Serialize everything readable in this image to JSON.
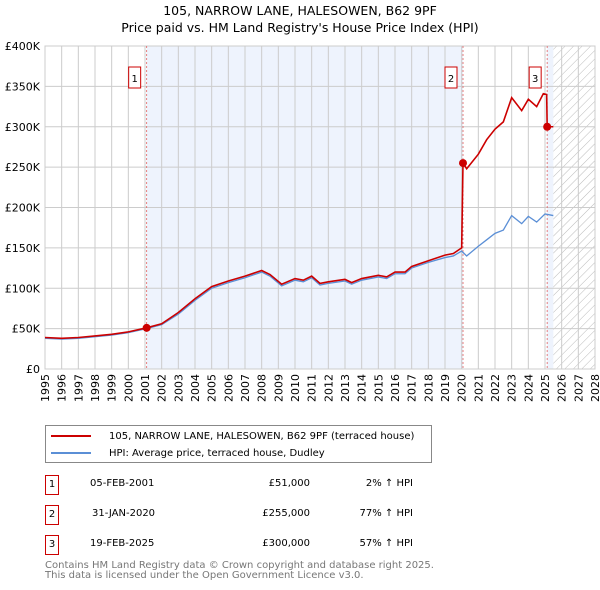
{
  "title": "105, NARROW LANE, HALESOWEN, B62 9PF",
  "subtitle": "Price paid vs. HM Land Registry's House Price Index (HPI)",
  "chart_data": {
    "type": "line",
    "ylabel": "",
    "xlabel": "",
    "xlim": [
      1995,
      2028
    ],
    "ylim": [
      0,
      400000
    ],
    "yticks": [
      {
        "v": 0,
        "label": "£0"
      },
      {
        "v": 50000,
        "label": "£50K"
      },
      {
        "v": 100000,
        "label": "£100K"
      },
      {
        "v": 150000,
        "label": "£150K"
      },
      {
        "v": 200000,
        "label": "£200K"
      },
      {
        "v": 250000,
        "label": "£250K"
      },
      {
        "v": 300000,
        "label": "£300K"
      },
      {
        "v": 350000,
        "label": "£350K"
      },
      {
        "v": 400000,
        "label": "£400K"
      }
    ],
    "xticks": [
      "1995",
      "1996",
      "1997",
      "1998",
      "1999",
      "2000",
      "2001",
      "2002",
      "2003",
      "2004",
      "2005",
      "2006",
      "2007",
      "2008",
      "2009",
      "2010",
      "2011",
      "2012",
      "2013",
      "2014",
      "2015",
      "2016",
      "2017",
      "2018",
      "2019",
      "2020",
      "2021",
      "2022",
      "2023",
      "2024",
      "2025",
      "2026",
      "2027",
      "2028"
    ],
    "shaded_ranges": [
      [
        2001.1,
        2020.08
      ],
      [
        2025.13,
        2025.5
      ]
    ],
    "forecast_hatch_from": 2025.5,
    "colors": {
      "property": "#cc0000",
      "hpi": "#5b8fd6",
      "shade": "#eef3fd",
      "marker": "#cc0000"
    },
    "series": [
      {
        "name": "105, NARROW LANE, HALESOWEN, B62 9PF (terraced house)",
        "points": [
          [
            1995,
            39000
          ],
          [
            1996,
            38000
          ],
          [
            1997,
            39000
          ],
          [
            1998,
            41000
          ],
          [
            1999,
            43000
          ],
          [
            2000,
            46000
          ],
          [
            2001.1,
            51000
          ],
          [
            2002,
            56000
          ],
          [
            2003,
            70000
          ],
          [
            2004,
            87000
          ],
          [
            2005,
            102000
          ],
          [
            2006,
            109000
          ],
          [
            2007,
            115000
          ],
          [
            2008,
            122000
          ],
          [
            2008.5,
            117000
          ],
          [
            2009.2,
            105000
          ],
          [
            2010,
            112000
          ],
          [
            2010.5,
            110000
          ],
          [
            2011,
            115000
          ],
          [
            2011.5,
            106000
          ],
          [
            2012,
            108000
          ],
          [
            2013,
            111000
          ],
          [
            2013.4,
            107000
          ],
          [
            2014,
            112000
          ],
          [
            2015,
            116000
          ],
          [
            2015.5,
            114000
          ],
          [
            2016,
            120000
          ],
          [
            2016.6,
            120000
          ],
          [
            2017,
            127000
          ],
          [
            2018,
            134000
          ],
          [
            2019,
            141000
          ],
          [
            2019.5,
            143000
          ],
          [
            2020.0,
            150000
          ],
          [
            2020.08,
            255000
          ],
          [
            2020.3,
            248000
          ],
          [
            2021,
            266000
          ],
          [
            2021.5,
            284000
          ],
          [
            2022,
            297000
          ],
          [
            2022.5,
            306000
          ],
          [
            2023,
            336000
          ],
          [
            2023.6,
            320000
          ],
          [
            2024,
            334000
          ],
          [
            2024.5,
            325000
          ],
          [
            2024.9,
            341000
          ],
          [
            2025.1,
            340000
          ],
          [
            2025.13,
            300000
          ],
          [
            2025.5,
            300000
          ]
        ]
      },
      {
        "name": "HPI: Average price, terraced house, Dudley",
        "points": [
          [
            1995,
            38000
          ],
          [
            1996,
            37000
          ],
          [
            1997,
            38000
          ],
          [
            1998,
            40000
          ],
          [
            1999,
            42000
          ],
          [
            2000,
            45000
          ],
          [
            2001.1,
            50000
          ],
          [
            2002,
            55000
          ],
          [
            2003,
            68000
          ],
          [
            2004,
            85000
          ],
          [
            2005,
            100000
          ],
          [
            2006,
            107000
          ],
          [
            2007,
            113000
          ],
          [
            2008,
            120000
          ],
          [
            2008.5,
            115000
          ],
          [
            2009.2,
            103000
          ],
          [
            2010,
            110000
          ],
          [
            2010.5,
            108000
          ],
          [
            2011,
            113000
          ],
          [
            2011.5,
            104000
          ],
          [
            2012,
            106000
          ],
          [
            2013,
            109000
          ],
          [
            2013.4,
            105000
          ],
          [
            2014,
            110000
          ],
          [
            2015,
            114000
          ],
          [
            2015.5,
            112000
          ],
          [
            2016,
            118000
          ],
          [
            2016.6,
            118000
          ],
          [
            2017,
            125000
          ],
          [
            2018,
            132000
          ],
          [
            2019,
            138000
          ],
          [
            2019.5,
            140000
          ],
          [
            2020,
            146000
          ],
          [
            2020.3,
            140000
          ],
          [
            2021,
            152000
          ],
          [
            2021.5,
            160000
          ],
          [
            2022,
            168000
          ],
          [
            2022.5,
            172000
          ],
          [
            2023,
            190000
          ],
          [
            2023.6,
            180000
          ],
          [
            2024,
            189000
          ],
          [
            2024.5,
            182000
          ],
          [
            2025,
            192000
          ],
          [
            2025.5,
            190000
          ]
        ]
      }
    ],
    "sales": [
      {
        "n": "1",
        "x": 2001.1,
        "y": 51000
      },
      {
        "n": "2",
        "x": 2020.08,
        "y": 255000
      },
      {
        "n": "3",
        "x": 2025.13,
        "y": 300000
      }
    ]
  },
  "legend": [
    "105, NARROW LANE, HALESOWEN, B62 9PF (terraced house)",
    "HPI: Average price, terraced house, Dudley"
  ],
  "table": [
    {
      "n": "1",
      "date": "05-FEB-2001",
      "price": "£51,000",
      "hpi": "2% ↑ HPI"
    },
    {
      "n": "2",
      "date": "31-JAN-2020",
      "price": "£255,000",
      "hpi": "77% ↑ HPI"
    },
    {
      "n": "3",
      "date": "19-FEB-2025",
      "price": "£300,000",
      "hpi": "57% ↑ HPI"
    }
  ],
  "footer": [
    "Contains HM Land Registry data © Crown copyright and database right 2025.",
    "This data is licensed under the Open Government Licence v3.0."
  ]
}
